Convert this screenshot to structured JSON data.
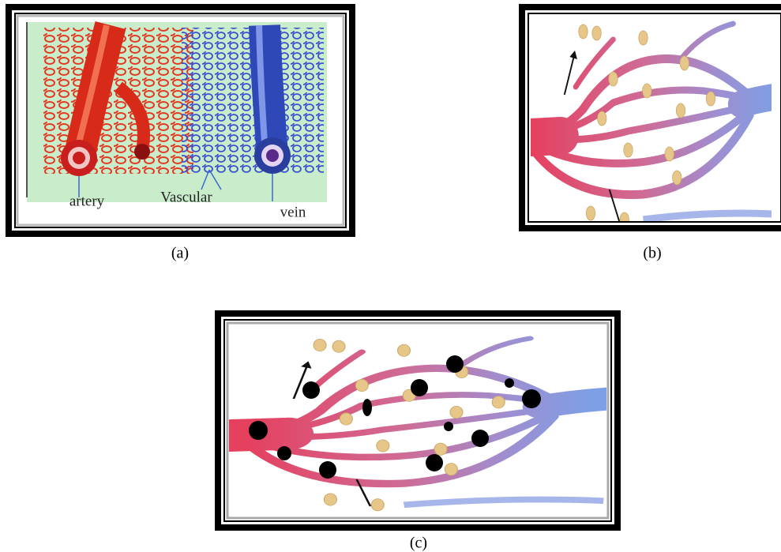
{
  "panels": [
    {
      "caption": "(a)",
      "labels": [
        "artery",
        "Vascular",
        "vein"
      ]
    },
    {
      "caption": "(b)"
    },
    {
      "caption": "(c)"
    }
  ]
}
